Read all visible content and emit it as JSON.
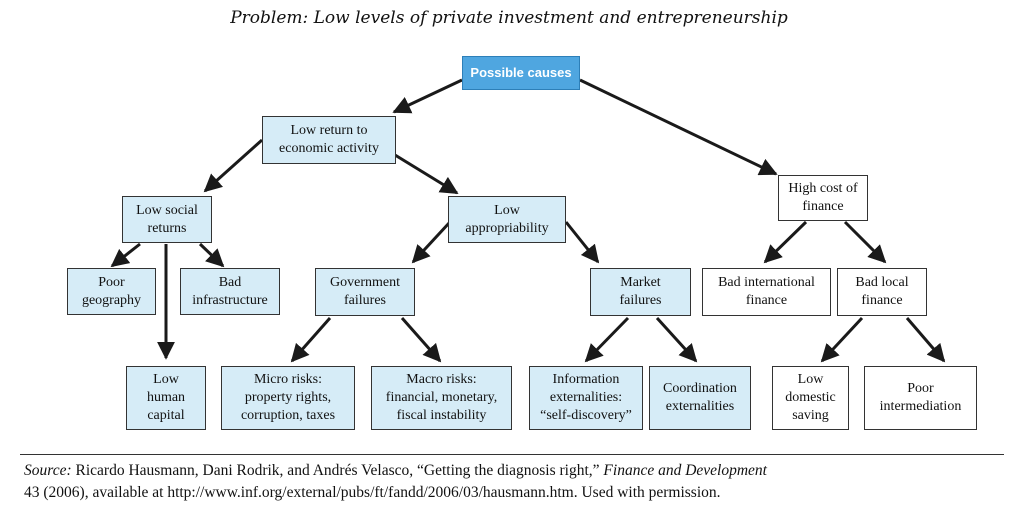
{
  "title": "Problem: Low levels of private investment and entrepreneurship",
  "nodes": {
    "possible_causes": "Possible causes",
    "low_return": "Low return to\neconomic activity",
    "high_cost": "High cost of\nfinance",
    "low_social": "Low social\nreturns",
    "low_approp": "Low\nappropriability",
    "poor_geo": "Poor\ngeography",
    "bad_infra": "Bad\ninfrastructure",
    "gov_fail": "Government\nfailures",
    "market_fail": "Market\nfailures",
    "bad_intl": "Bad international\nfinance",
    "bad_local": "Bad local\nfinance",
    "low_human": "Low\nhuman\ncapital",
    "micro": "Micro risks:\nproperty rights,\ncorruption, taxes",
    "macro": "Macro risks:\nfinancial, monetary,\nfiscal instability",
    "info_ext": "Information\nexternalities:\n“self-discovery”",
    "coord_ext": "Coordination\nexternalities",
    "low_saving": "Low\ndomestic\nsaving",
    "poor_interm": "Poor\nintermediation"
  },
  "source": {
    "label": "Source:",
    "text1": " Ricardo Hausmann, Dani Rodrik, and Andrés Velasco, “Getting the diagnosis right,” ",
    "journal": "Finance and Development",
    "text2": "43 (2006), available at http://www.inf.org/external/pubs/ft/fandd/2006/03/hausmann.htm. Used with permission."
  },
  "colors": {
    "root_fill": "#4fa6e0",
    "node_fill": "#d6ecf7",
    "arrow": "#1a1a1a"
  }
}
